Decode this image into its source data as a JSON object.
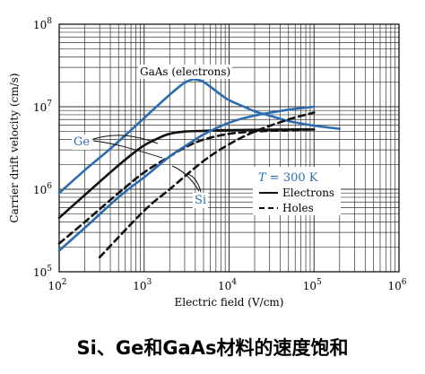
{
  "caption": "Si、Ge和GaAs材料的速度饱和",
  "colors": {
    "blue": "#2b6cb0",
    "black": "#111111",
    "grid": "#333333"
  },
  "chart_data": {
    "type": "line",
    "title": "",
    "xlabel": "Electric field (V/cm)",
    "ylabel": "Carrier drift velocity (cm/s)",
    "x_scale": "log",
    "y_scale": "log",
    "xlim": [
      100,
      1000000
    ],
    "ylim": [
      100000,
      100000000
    ],
    "x_ticks": [
      {
        "value": 100,
        "base": "10",
        "exp": "2"
      },
      {
        "value": 1000,
        "base": "10",
        "exp": "3"
      },
      {
        "value": 10000,
        "base": "10",
        "exp": "4"
      },
      {
        "value": 100000,
        "base": "10",
        "exp": "5"
      },
      {
        "value": 1000000,
        "base": "10",
        "exp": "6"
      }
    ],
    "y_ticks": [
      {
        "value": 100000,
        "base": "10",
        "exp": "5"
      },
      {
        "value": 1000000,
        "base": "10",
        "exp": "6"
      },
      {
        "value": 10000000,
        "base": "10",
        "exp": "7"
      },
      {
        "value": 100000000,
        "base": "10",
        "exp": "8"
      }
    ],
    "grid": true,
    "annotations": {
      "gaas": "GaAs (electrons)",
      "ge": "Ge",
      "si": "Si"
    },
    "legend": {
      "placement": "right",
      "title_italic": "T",
      "title_rest": " = 300 K",
      "entries": [
        {
          "label": "Electrons",
          "style": "solid"
        },
        {
          "label": "Holes",
          "style": "dashed"
        }
      ]
    },
    "series": [
      {
        "material": "GaAs",
        "carrier": "electrons",
        "color": "blue",
        "style": "solid",
        "x": [
          100,
          200,
          400,
          700,
          1000,
          1500,
          2000,
          2500,
          3000,
          3500,
          4000,
          5000,
          6000,
          8000,
          10000,
          15000,
          20000,
          30000,
          50000,
          100000,
          200000
        ],
        "y": [
          900000,
          1700000,
          3100000,
          5200000,
          7300000,
          10700000,
          14000000,
          17000000,
          19500000,
          21000000,
          21500000,
          20000000,
          17500000,
          14000000,
          12000000,
          10000000,
          8800000,
          7800000,
          6700000,
          5900000,
          5400000
        ]
      },
      {
        "material": "Ge",
        "carrier": "electrons",
        "color": "black",
        "style": "solid",
        "x": [
          100,
          200,
          400,
          700,
          1000,
          1500,
          2000,
          3000,
          5000,
          10000,
          50000,
          100000
        ],
        "y": [
          450000,
          850000,
          1600000,
          2600000,
          3400000,
          4200000,
          4700000,
          5000000,
          5100000,
          5200000,
          5300000,
          5300000
        ]
      },
      {
        "material": "Ge",
        "carrier": "holes",
        "color": "black",
        "style": "dashed",
        "x": [
          100,
          200,
          500,
          1000,
          2000,
          3000,
          5000,
          10000,
          20000,
          50000,
          100000
        ],
        "y": [
          220000,
          400000,
          900000,
          1600000,
          2500000,
          3200000,
          4000000,
          4700000,
          5000000,
          5200000,
          5300000
        ]
      },
      {
        "material": "Si",
        "carrier": "electrons",
        "color": "blue",
        "style": "solid",
        "x": [
          100,
          200,
          500,
          1000,
          2000,
          3000,
          5000,
          10000,
          20000,
          50000,
          100000
        ],
        "y": [
          180000,
          340000,
          800000,
          1400000,
          2500000,
          3300000,
          4600000,
          6400000,
          7800000,
          9200000,
          10000000
        ]
      },
      {
        "material": "Si",
        "carrier": "holes",
        "color": "black",
        "style": "dashed",
        "x": [
          300,
          1000,
          2000,
          5000,
          10000,
          20000,
          50000,
          100000
        ],
        "y": [
          150000,
          550000,
          1000000,
          2200000,
          3500000,
          5000000,
          7000000,
          8500000
        ]
      }
    ]
  }
}
